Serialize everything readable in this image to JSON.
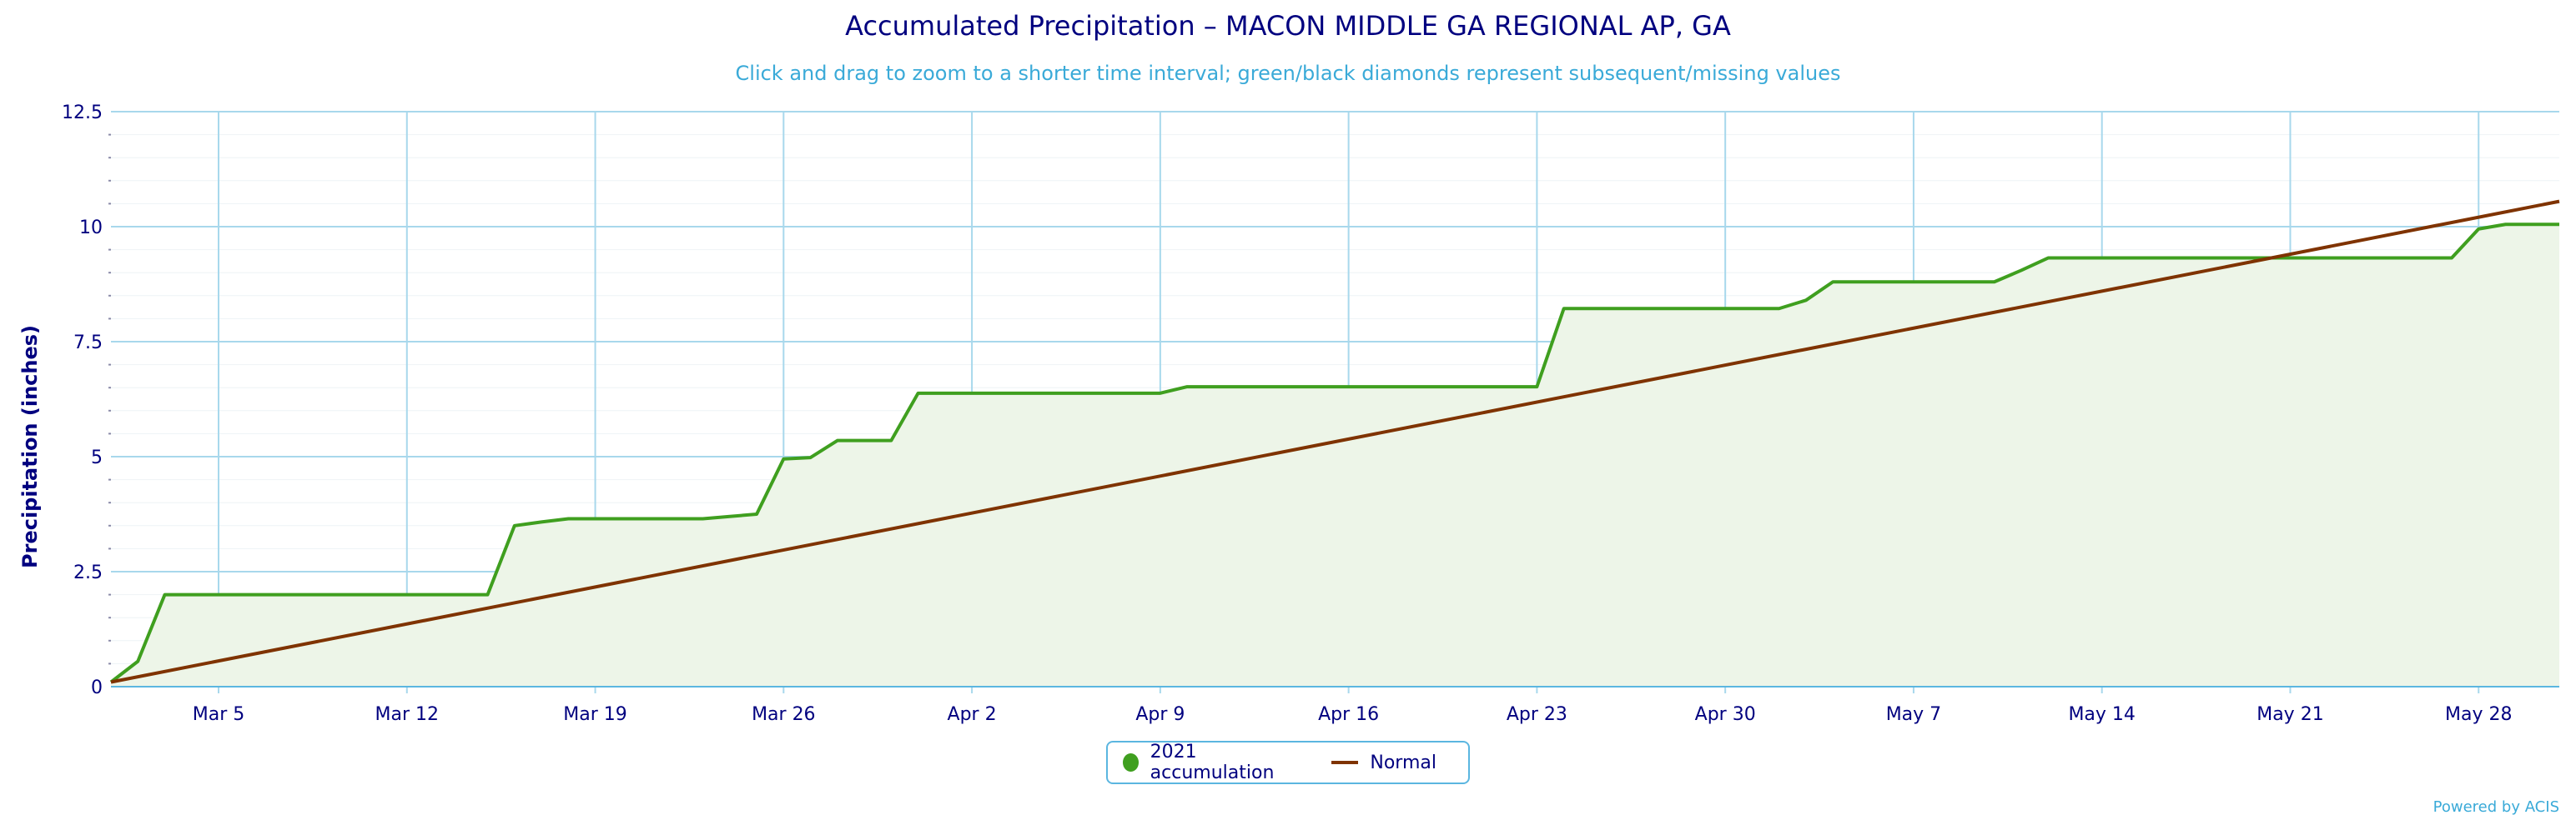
{
  "chart_data": {
    "type": "area",
    "title": "Accumulated Precipitation – MACON MIDDLE GA REGIONAL AP, GA",
    "subtitle": "Click and drag to zoom to a shorter time interval; green/black diamonds represent subsequent/missing values",
    "ylabel": "Precipitation (inches)",
    "xlabel": "",
    "x_range": [
      "2021-03-01",
      "2021-05-31"
    ],
    "ylim": [
      0,
      12.5
    ],
    "y_ticks": [
      {
        "value": 0,
        "label": "0"
      },
      {
        "value": 2.5,
        "label": "2.5"
      },
      {
        "value": 5,
        "label": "5"
      },
      {
        "value": 7.5,
        "label": "7.5"
      },
      {
        "value": 10,
        "label": "10"
      },
      {
        "value": 12.5,
        "label": "12.5"
      }
    ],
    "x_ticks": [
      {
        "date": "2021-03-05",
        "label": "Mar 5"
      },
      {
        "date": "2021-03-12",
        "label": "Mar 12"
      },
      {
        "date": "2021-03-19",
        "label": "Mar 19"
      },
      {
        "date": "2021-03-26",
        "label": "Mar 26"
      },
      {
        "date": "2021-04-02",
        "label": "Apr 2"
      },
      {
        "date": "2021-04-09",
        "label": "Apr 9"
      },
      {
        "date": "2021-04-16",
        "label": "Apr 16"
      },
      {
        "date": "2021-04-23",
        "label": "Apr 23"
      },
      {
        "date": "2021-04-30",
        "label": "Apr 30"
      },
      {
        "date": "2021-05-07",
        "label": "May 7"
      },
      {
        "date": "2021-05-14",
        "label": "May 14"
      },
      {
        "date": "2021-05-21",
        "label": "May 21"
      },
      {
        "date": "2021-05-28",
        "label": "May 28"
      }
    ],
    "grid": true,
    "legend_position": "bottom-center",
    "series": [
      {
        "name": "2021 accumulation",
        "color": "#3f9f1f",
        "fill": "#edf5e8",
        "marker": "circle",
        "points": [
          [
            "2021-03-01",
            0.1
          ],
          [
            "2021-03-02",
            0.55
          ],
          [
            "2021-03-03",
            2.0
          ],
          [
            "2021-03-04",
            2.0
          ],
          [
            "2021-03-14",
            2.0
          ],
          [
            "2021-03-15",
            2.0
          ],
          [
            "2021-03-16",
            3.5
          ],
          [
            "2021-03-17",
            3.58
          ],
          [
            "2021-03-18",
            3.65
          ],
          [
            "2021-03-23",
            3.65
          ],
          [
            "2021-03-24",
            3.7
          ],
          [
            "2021-03-25",
            3.75
          ],
          [
            "2021-03-26",
            4.95
          ],
          [
            "2021-03-27",
            4.98
          ],
          [
            "2021-03-28",
            5.35
          ],
          [
            "2021-03-29",
            5.35
          ],
          [
            "2021-03-30",
            5.35
          ],
          [
            "2021-03-31",
            6.38
          ],
          [
            "2021-04-01",
            6.38
          ],
          [
            "2021-04-09",
            6.38
          ],
          [
            "2021-04-10",
            6.52
          ],
          [
            "2021-04-22",
            6.52
          ],
          [
            "2021-04-23",
            6.52
          ],
          [
            "2021-04-24",
            8.22
          ],
          [
            "2021-05-02",
            8.22
          ],
          [
            "2021-05-03",
            8.4
          ],
          [
            "2021-05-04",
            8.8
          ],
          [
            "2021-05-10",
            8.8
          ],
          [
            "2021-05-11",
            9.05
          ],
          [
            "2021-05-12",
            9.32
          ],
          [
            "2021-05-27",
            9.32
          ],
          [
            "2021-05-28",
            9.95
          ],
          [
            "2021-05-29",
            10.05
          ],
          [
            "2021-05-31",
            10.05
          ]
        ]
      },
      {
        "name": "Normal",
        "color": "#7f3300",
        "marker": "line",
        "points": [
          [
            "2021-03-01",
            0.1
          ],
          [
            "2021-05-31",
            10.55
          ]
        ]
      }
    ]
  },
  "credit": "Powered by ACIS"
}
